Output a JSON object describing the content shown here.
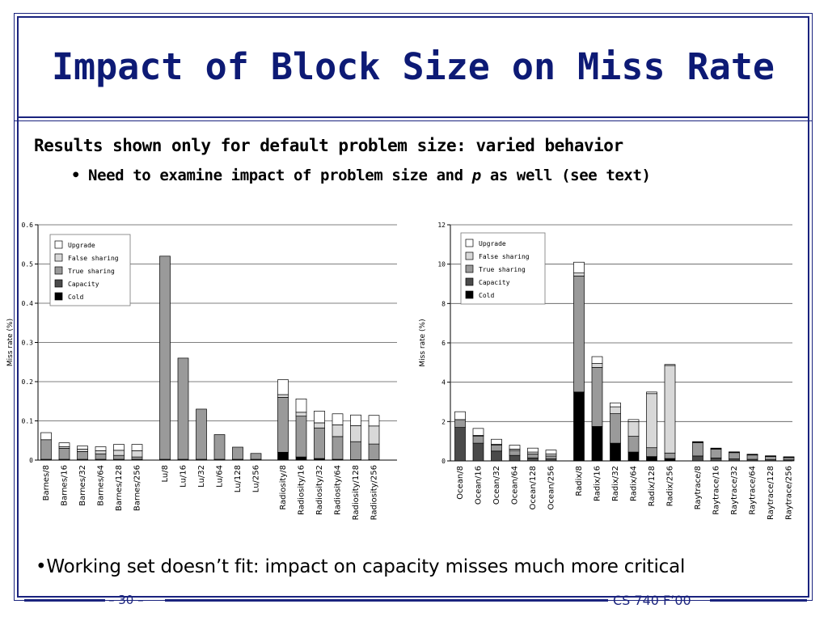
{
  "slide": {
    "title": "Impact of Block Size on Miss Rate",
    "bullet1": "Results shown only for default problem size: varied behavior",
    "bullet2_marker": "•",
    "bullet2_pre": "Need to examine impact of problem size and ",
    "bullet2_italic": "p",
    "bullet2_post": " as well (see text)",
    "bullet3_marker": "•",
    "bullet3": "Working set doesn’t fit: impact on capacity misses much more critical",
    "page_number": "– 30 –",
    "course": "CS 740 F’00"
  },
  "colors": {
    "frame": "#1a237e",
    "title": "#0d1a75",
    "Cold": "#000000",
    "Capacity": "#4a4a4a",
    "True sharing": "#9a9a9a",
    "False sharing": "#d8d8d8",
    "Upgrade": "#ffffff"
  },
  "chart_data": [
    {
      "type": "bar",
      "stacked": true,
      "ylabel": "Miss rate (%)",
      "ylim": [
        0,
        0.6
      ],
      "yticks": [
        "0",
        "0.1",
        "0.2",
        "0.3",
        "0.4",
        "0.5",
        "0.6"
      ],
      "grid": true,
      "legend": "top-left",
      "stack_order": [
        "Cold",
        "Capacity",
        "True sharing",
        "False sharing",
        "Upgrade"
      ],
      "legend_order": [
        "Upgrade",
        "False sharing",
        "True sharing",
        "Capacity",
        "Cold"
      ],
      "groups": [
        {
          "bars": [
            {
              "label": "Barnes/8",
              "Cold": 0.0,
              "Capacity": 0.002,
              "True sharing": 0.05,
              "False sharing": 0.0,
              "Upgrade": 0.018
            },
            {
              "label": "Barnes/16",
              "Cold": 0.0,
              "Capacity": 0.002,
              "True sharing": 0.028,
              "False sharing": 0.004,
              "Upgrade": 0.01
            },
            {
              "label": "Barnes/32",
              "Cold": 0.0,
              "Capacity": 0.002,
              "True sharing": 0.02,
              "False sharing": 0.006,
              "Upgrade": 0.008
            },
            {
              "label": "Barnes/64",
              "Cold": 0.0,
              "Capacity": 0.002,
              "True sharing": 0.014,
              "False sharing": 0.008,
              "Upgrade": 0.01
            },
            {
              "label": "Barnes/128",
              "Cold": 0.0,
              "Capacity": 0.002,
              "True sharing": 0.01,
              "False sharing": 0.013,
              "Upgrade": 0.015
            },
            {
              "label": "Barnes/256",
              "Cold": 0.0,
              "Capacity": 0.002,
              "True sharing": 0.006,
              "False sharing": 0.016,
              "Upgrade": 0.016
            }
          ]
        },
        {
          "bars": [
            {
              "label": "Lu/8",
              "Cold": 0.0,
              "Capacity": 0.002,
              "True sharing": 0.518,
              "False sharing": 0.0,
              "Upgrade": 0.0
            },
            {
              "label": "Lu/16",
              "Cold": 0.0,
              "Capacity": 0.002,
              "True sharing": 0.258,
              "False sharing": 0.0,
              "Upgrade": 0.0
            },
            {
              "label": "Lu/32",
              "Cold": 0.0,
              "Capacity": 0.002,
              "True sharing": 0.128,
              "False sharing": 0.0,
              "Upgrade": 0.0
            },
            {
              "label": "Lu/64",
              "Cold": 0.0,
              "Capacity": 0.002,
              "True sharing": 0.063,
              "False sharing": 0.0,
              "Upgrade": 0.0
            },
            {
              "label": "Lu/128",
              "Cold": 0.0,
              "Capacity": 0.002,
              "True sharing": 0.031,
              "False sharing": 0.0,
              "Upgrade": 0.0
            },
            {
              "label": "Lu/256",
              "Cold": 0.0,
              "Capacity": 0.002,
              "True sharing": 0.015,
              "False sharing": 0.0,
              "Upgrade": 0.0
            }
          ]
        },
        {
          "bars": [
            {
              "label": "Radiosity/8",
              "Cold": 0.02,
              "Capacity": 0.0,
              "True sharing": 0.14,
              "False sharing": 0.007,
              "Upgrade": 0.038
            },
            {
              "label": "Radiosity/16",
              "Cold": 0.008,
              "Capacity": 0.0,
              "True sharing": 0.104,
              "False sharing": 0.01,
              "Upgrade": 0.034
            },
            {
              "label": "Radiosity/32",
              "Cold": 0.004,
              "Capacity": 0.0,
              "True sharing": 0.078,
              "False sharing": 0.013,
              "Upgrade": 0.03
            },
            {
              "label": "Radiosity/64",
              "Cold": 0.002,
              "Capacity": 0.0,
              "True sharing": 0.058,
              "False sharing": 0.03,
              "Upgrade": 0.028
            },
            {
              "label": "Radiosity/128",
              "Cold": 0.001,
              "Capacity": 0.0,
              "True sharing": 0.046,
              "False sharing": 0.041,
              "Upgrade": 0.027
            },
            {
              "label": "Radiosity/256",
              "Cold": 0.001,
              "Capacity": 0.0,
              "True sharing": 0.04,
              "False sharing": 0.046,
              "Upgrade": 0.027
            }
          ]
        }
      ]
    },
    {
      "type": "bar",
      "stacked": true,
      "ylabel": "Miss rate (%)",
      "ylim": [
        0,
        12
      ],
      "yticks": [
        "0",
        "2",
        "4",
        "6",
        "8",
        "10",
        "12"
      ],
      "grid": true,
      "legend": "top-left",
      "stack_order": [
        "Cold",
        "Capacity",
        "True sharing",
        "False sharing",
        "Upgrade"
      ],
      "legend_order": [
        "Upgrade",
        "False sharing",
        "True sharing",
        "Capacity",
        "Cold"
      ],
      "groups": [
        {
          "bars": [
            {
              "label": "Ocean/8",
              "Cold": 0.0,
              "Capacity": 1.7,
              "True sharing": 0.4,
              "False sharing": 0.0,
              "Upgrade": 0.4
            },
            {
              "label": "Ocean/16",
              "Cold": 0.0,
              "Capacity": 0.9,
              "True sharing": 0.35,
              "False sharing": 0.05,
              "Upgrade": 0.35
            },
            {
              "label": "Ocean/32",
              "Cold": 0.0,
              "Capacity": 0.5,
              "True sharing": 0.3,
              "False sharing": 0.05,
              "Upgrade": 0.25
            },
            {
              "label": "Ocean/64",
              "Cold": 0.0,
              "Capacity": 0.28,
              "True sharing": 0.25,
              "False sharing": 0.07,
              "Upgrade": 0.2
            },
            {
              "label": "Ocean/128",
              "Cold": 0.0,
              "Capacity": 0.15,
              "True sharing": 0.2,
              "False sharing": 0.1,
              "Upgrade": 0.2
            },
            {
              "label": "Ocean/256",
              "Cold": 0.0,
              "Capacity": 0.1,
              "True sharing": 0.15,
              "False sharing": 0.1,
              "Upgrade": 0.2
            }
          ]
        },
        {
          "bars": [
            {
              "label": "Radix/8",
              "Cold": 3.5,
              "Capacity": 0.0,
              "True sharing": 5.9,
              "False sharing": 0.15,
              "Upgrade": 0.55
            },
            {
              "label": "Radix/16",
              "Cold": 1.75,
              "Capacity": 0.0,
              "True sharing": 3.0,
              "False sharing": 0.2,
              "Upgrade": 0.35
            },
            {
              "label": "Radix/32",
              "Cold": 0.9,
              "Capacity": 0.0,
              "True sharing": 1.5,
              "False sharing": 0.35,
              "Upgrade": 0.2
            },
            {
              "label": "Radix/64",
              "Cold": 0.45,
              "Capacity": 0.0,
              "True sharing": 0.8,
              "False sharing": 0.75,
              "Upgrade": 0.1
            },
            {
              "label": "Radix/128",
              "Cold": 0.22,
              "Capacity": 0.0,
              "True sharing": 0.45,
              "False sharing": 2.75,
              "Upgrade": 0.08
            },
            {
              "label": "Radix/256",
              "Cold": 0.12,
              "Capacity": 0.0,
              "True sharing": 0.28,
              "False sharing": 4.45,
              "Upgrade": 0.05
            }
          ]
        },
        {
          "bars": [
            {
              "label": "Raytrace/8",
              "Cold": 0.0,
              "Capacity": 0.25,
              "True sharing": 0.68,
              "False sharing": 0.02,
              "Upgrade": 0.03
            },
            {
              "label": "Raytrace/16",
              "Cold": 0.0,
              "Capacity": 0.15,
              "True sharing": 0.45,
              "False sharing": 0.02,
              "Upgrade": 0.03
            },
            {
              "label": "Raytrace/32",
              "Cold": 0.0,
              "Capacity": 0.1,
              "True sharing": 0.32,
              "False sharing": 0.02,
              "Upgrade": 0.02
            },
            {
              "label": "Raytrace/64",
              "Cold": 0.0,
              "Capacity": 0.08,
              "True sharing": 0.22,
              "False sharing": 0.02,
              "Upgrade": 0.02
            },
            {
              "label": "Raytrace/128",
              "Cold": 0.0,
              "Capacity": 0.06,
              "True sharing": 0.16,
              "False sharing": 0.02,
              "Upgrade": 0.02
            },
            {
              "label": "Raytrace/256",
              "Cold": 0.0,
              "Capacity": 0.05,
              "True sharing": 0.12,
              "False sharing": 0.02,
              "Upgrade": 0.02
            }
          ]
        }
      ]
    }
  ]
}
